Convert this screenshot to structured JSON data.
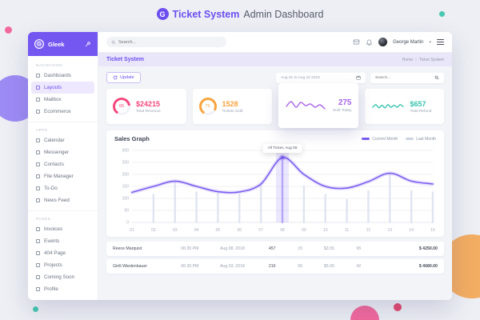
{
  "header": {
    "logo_letter": "G",
    "brand": "Ticket System",
    "title": "Admin Dashboard"
  },
  "sidebar": {
    "logo_letter": "G",
    "brand": "Gleek",
    "sections": [
      {
        "label": "NAVIGATION",
        "items": [
          {
            "icon": "dashboards-icon",
            "label": "Dashboards",
            "active": false
          },
          {
            "icon": "layouts-icon",
            "label": "Layouts",
            "active": true
          },
          {
            "icon": "mailbox-icon",
            "label": "Mailbox",
            "active": false
          },
          {
            "icon": "ecommerce-icon",
            "label": "Ecommerce",
            "active": false
          }
        ]
      },
      {
        "label": "APPS",
        "items": [
          {
            "icon": "calendar-icon",
            "label": "Calendar",
            "active": false
          },
          {
            "icon": "messenger-icon",
            "label": "Messenger",
            "active": false
          },
          {
            "icon": "contacts-icon",
            "label": "Contacts",
            "active": false
          },
          {
            "icon": "file-manager-icon",
            "label": "File Manager",
            "active": false
          },
          {
            "icon": "todo-icon",
            "label": "To-Do",
            "active": false
          },
          {
            "icon": "news-feed-icon",
            "label": "News Feed",
            "active": false
          }
        ]
      },
      {
        "label": "PAGES",
        "items": [
          {
            "icon": "invoices-icon",
            "label": "Invoices",
            "active": false
          },
          {
            "icon": "events-icon",
            "label": "Events",
            "active": false
          },
          {
            "icon": "error-page-icon",
            "label": "404 Page",
            "active": false
          },
          {
            "icon": "projects-icon",
            "label": "Projects",
            "active": false
          },
          {
            "icon": "coming-soon-icon",
            "label": "Coming Soon",
            "active": false
          },
          {
            "icon": "profile-icon",
            "label": "Profile",
            "active": false
          }
        ]
      }
    ]
  },
  "topbar": {
    "search_placeholder": "Search...",
    "user_name": "George Martin"
  },
  "breadcrumb": {
    "page_title": "Ticket System",
    "home": "Home",
    "separator": "›",
    "current": "Ticket System"
  },
  "toolbar": {
    "update_label": "Update",
    "date_range": "Aug 01 to Aug 10 2018",
    "search_placeholder": "Search..."
  },
  "stat_cards": [
    {
      "type": "ring",
      "ring_value": "65",
      "percent": 65,
      "metric": "$24215",
      "label": "Total Revenue",
      "color": "#f4477e"
    },
    {
      "type": "ring",
      "ring_value": "75",
      "percent": 75,
      "metric": "1528",
      "label": "Tickets Sold",
      "color": "#f9a33c"
    },
    {
      "type": "spark",
      "metric": "275",
      "label": "Sold Today",
      "color": "#a963e8",
      "spark": [
        5,
        8,
        4.5,
        7.5,
        5.5,
        6.5,
        4.5,
        6,
        3.5
      ]
    },
    {
      "type": "spark",
      "metric": "$657",
      "label": "Total Refund",
      "color": "#38c4ae",
      "spark": [
        5,
        7,
        4.5,
        6.5,
        4.5,
        7,
        5,
        6.5,
        5,
        7,
        5.5
      ]
    }
  ],
  "chart_data": {
    "type": "line",
    "title": "Sales Graph",
    "x": [
      "01",
      "02",
      "03",
      "04",
      "05",
      "06",
      "07",
      "08",
      "09",
      "10",
      "11",
      "12",
      "13",
      "14",
      "15"
    ],
    "series": [
      {
        "name": "Current Month",
        "style": "line",
        "color": "#7a5cf0",
        "values": [
          125,
          150,
          172,
          150,
          128,
          127,
          160,
          270,
          200,
          150,
          143,
          170,
          205,
          172,
          160
        ]
      },
      {
        "name": "Last Month",
        "style": "bars",
        "color": "#dfe4f0",
        "values": [
          0,
          115,
          165,
          125,
          120,
          115,
          160,
          255,
          150,
          115,
          95,
          130,
          205,
          130,
          125
        ]
      }
    ],
    "ylim": [
      0,
      300
    ],
    "yticks": [
      0,
      50,
      100,
      150,
      200,
      250,
      300
    ],
    "grid": true,
    "legend_position": "top-right",
    "highlight": {
      "index": 7,
      "tooltip": "All Ticket, Aug 08",
      "band_color": "#8468f2"
    }
  },
  "table": {
    "rows": [
      {
        "name": "Reece Marquist",
        "time": "06:30 PM",
        "date": "Aug 08, 2018",
        "qty": "457",
        "count": "15",
        "price": "$3.55",
        "sold": "65",
        "total": "$ 4250.00"
      },
      {
        "name": "Girtli Wiedenbauer",
        "time": "06:30 PM",
        "date": "Aug 03, 2018",
        "qty": "216",
        "count": "56",
        "price": "$5.00",
        "sold": "42",
        "total": "$ 4680.00"
      }
    ]
  }
}
